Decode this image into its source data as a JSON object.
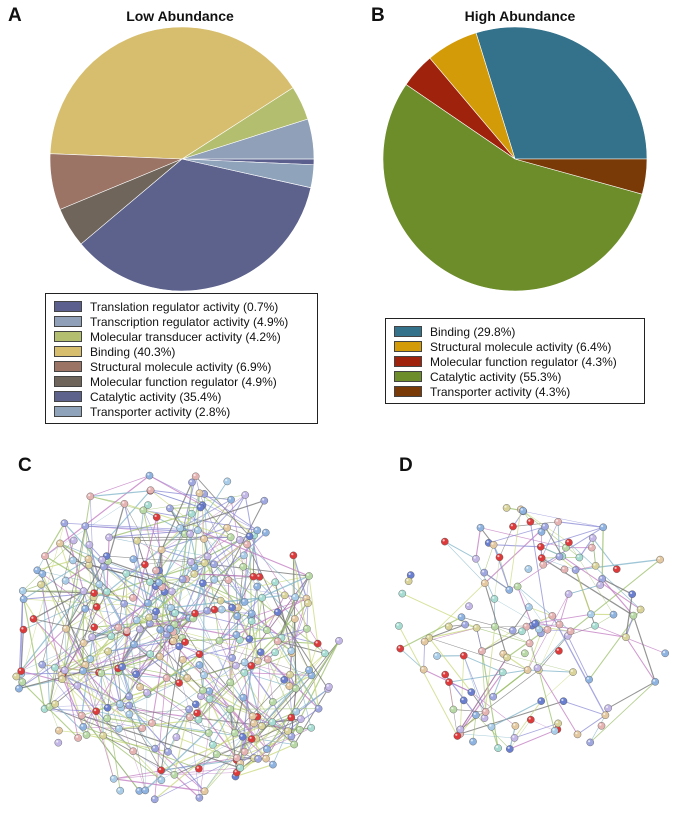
{
  "figure": {
    "panel_labels": [
      "A",
      "B",
      "C",
      "D"
    ]
  },
  "chart_data": [
    {
      "type": "pie",
      "title": "Low Abundance",
      "legend_placement": "bottom",
      "slices": [
        {
          "label": "Translation regulator activity (0.7%)",
          "value": 0.7,
          "color": "#5b5f8e"
        },
        {
          "label": "Transcription regulator activity (4.9%)",
          "value": 4.9,
          "color": "#8fa0b8"
        },
        {
          "label": "Molecular transducer activity (4.2%)",
          "value": 4.2,
          "color": "#b3be6e"
        },
        {
          "label": "Binding (40.3%)",
          "value": 40.3,
          "color": "#d7be6f"
        },
        {
          "label": "Structural molecule activity (6.9%)",
          "value": 6.9,
          "color": "#9b7466"
        },
        {
          "label": "Molecular function regulator (4.9%)",
          "value": 4.9,
          "color": "#6f655b"
        },
        {
          "label": "Catalytic activity (35.4%)",
          "value": 35.4,
          "color": "#5d628d"
        },
        {
          "label": "Transporter activity (2.8%)",
          "value": 2.8,
          "color": "#8fa3bb"
        }
      ]
    },
    {
      "type": "pie",
      "title": "High Abundance",
      "legend_placement": "bottom",
      "slices": [
        {
          "label": "Binding (29.8%)",
          "value": 29.8,
          "color": "#33728a"
        },
        {
          "label": "Structural molecule activity (6.4%)",
          "value": 6.4,
          "color": "#d49b09"
        },
        {
          "label": "Molecular function regulator (4.3%)",
          "value": 4.3,
          "color": "#9e220c"
        },
        {
          "label": "Catalytic activity (55.3%)",
          "value": 55.3,
          "color": "#6d8d2b"
        },
        {
          "label": "Transporter activity (4.3%)",
          "value": 4.3,
          "color": "#7a3a07"
        }
      ]
    }
  ],
  "networks": {
    "node_colors": [
      "#8fb3e0",
      "#a9cde8",
      "#b8d9a6",
      "#e3c8a0",
      "#c2b7e6",
      "#a6dcd2",
      "#e6b3b3",
      "#9fa7e0",
      "#d9d39a",
      "#dd3b3b",
      "#6a7fd0"
    ],
    "edge_colors": [
      "#9bbf6a",
      "#c07ac0",
      "#8a8ad6",
      "#707070",
      "#c8d87a",
      "#7fb3c8"
    ]
  }
}
